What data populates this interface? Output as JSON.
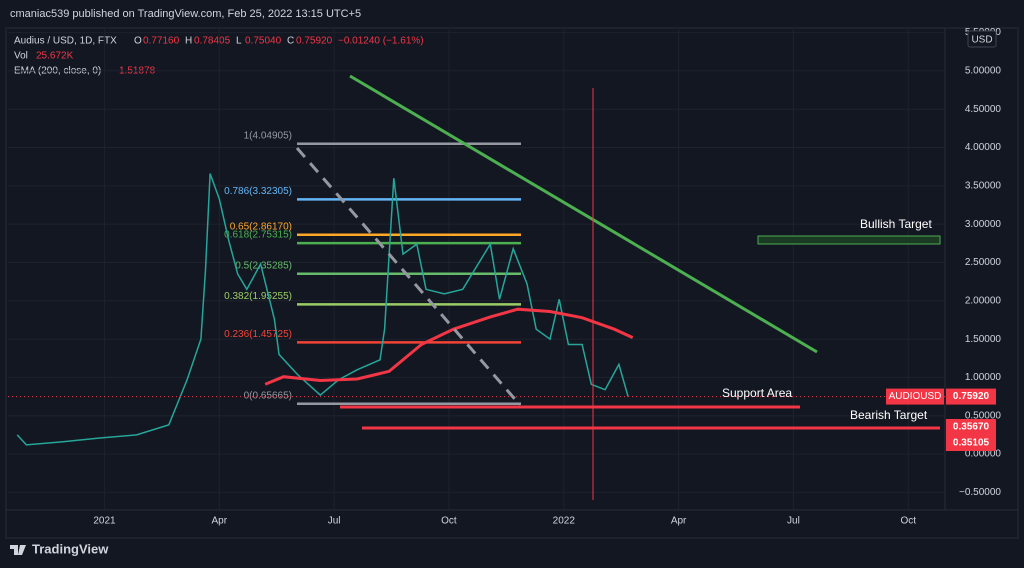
{
  "header": {
    "publisher": "cmaniac539 published on TradingView.com, Feb 25, 2022 13:15 UTC+5"
  },
  "legend": {
    "symbol": "Audius / USD, 1D, FTX",
    "o_key": "O",
    "open": "0.77160",
    "h_key": "H",
    "high": "0.78405",
    "l_key": "L",
    "low": "0.75040",
    "c_key": "C",
    "close": "0.75920",
    "change": "−0.01240 (−1.61%)",
    "vol_key": "Vol",
    "vol": "25.672K",
    "ema_key": "EMA (200, close, 0)",
    "ema": "1.51878"
  },
  "annotations": {
    "bullish": "Bullish Target",
    "support": "Support Area",
    "bearish": "Bearish Target"
  },
  "price_tags": [
    {
      "label": "AUDIOUSD",
      "value": "0.75920"
    },
    {
      "value": "0.35670"
    },
    {
      "value": "0.35105"
    }
  ],
  "currency": "USD",
  "footer": "TradingView",
  "chart_data": {
    "type": "line",
    "xlim": [
      2020.79,
      2022.83
    ],
    "ylim": [
      -0.73,
      5.56
    ],
    "xticks": [
      {
        "value": 2021,
        "label": "2021"
      },
      {
        "value": 2021.25,
        "label": "Apr"
      },
      {
        "value": 2021.5,
        "label": "Jul"
      },
      {
        "value": 2021.75,
        "label": "Oct"
      },
      {
        "value": 2022,
        "label": "2022"
      },
      {
        "value": 2022.25,
        "label": "Apr"
      },
      {
        "value": 2022.5,
        "label": "Jul"
      },
      {
        "value": 2022.75,
        "label": "Oct"
      }
    ],
    "yticks": [
      {
        "value": -0.5,
        "label": "−0.50000"
      },
      {
        "value": 0,
        "label": "0.00000"
      },
      {
        "value": 0.5,
        "label": "0.50000"
      },
      {
        "value": 1,
        "label": "1.00000"
      },
      {
        "value": 1.5,
        "label": "1.50000"
      },
      {
        "value": 2,
        "label": "2.00000"
      },
      {
        "value": 2.5,
        "label": "2.50000"
      },
      {
        "value": 3,
        "label": "3.00000"
      },
      {
        "value": 3.5,
        "label": "3.50000"
      },
      {
        "value": 4,
        "label": "4.00000"
      },
      {
        "value": 4.5,
        "label": "4.50000"
      },
      {
        "value": 5,
        "label": "5.00000"
      },
      {
        "value": 5.5,
        "label": "5.50000"
      }
    ],
    "series": [
      {
        "name": "AUDIOUSD",
        "color": "#26a69a",
        "x": [
          2020.81,
          2020.83,
          2020.91,
          2020.99,
          2021.07,
          2021.14,
          2021.18,
          2021.21,
          2021.22,
          2021.23,
          2021.25,
          2021.27,
          2021.29,
          2021.31,
          2021.34,
          2021.37,
          2021.38,
          2021.42,
          2021.47,
          2021.51,
          2021.55,
          2021.6,
          2021.61,
          2021.63,
          2021.65,
          2021.68,
          2021.7,
          2021.74,
          2021.78,
          2021.84,
          2021.86,
          2021.89,
          2021.92,
          2021.94,
          2021.97,
          2021.99,
          2022.01,
          2022.04,
          2022.06,
          2022.09,
          2022.12,
          2022.14
        ],
        "values": [
          0.25,
          0.12,
          0.16,
          0.21,
          0.25,
          0.38,
          0.97,
          1.5,
          2.4,
          3.66,
          3.33,
          2.8,
          2.35,
          2.15,
          2.48,
          1.76,
          1.3,
          1.04,
          0.77,
          0.97,
          1.1,
          1.23,
          1.63,
          3.6,
          2.61,
          2.74,
          2.15,
          2.09,
          2.15,
          2.74,
          2.02,
          2.68,
          2.22,
          1.63,
          1.5,
          2.02,
          1.43,
          1.43,
          0.91,
          0.84,
          1.17,
          0.75
        ]
      },
      {
        "name": "EMA (200, close, 0)",
        "color": "#f23645",
        "x": [
          2021.35,
          2021.39,
          2021.47,
          2021.55,
          2021.62,
          2021.69,
          2021.76,
          2021.84,
          2021.9,
          2021.97,
          2022.04,
          2022.11,
          2022.15
        ],
        "values": [
          0.91,
          1.01,
          0.96,
          0.98,
          1.08,
          1.43,
          1.63,
          1.79,
          1.89,
          1.86,
          1.78,
          1.63,
          1.52
        ]
      }
    ],
    "fib_levels": [
      {
        "label": "1(4.04905)",
        "value": 4.04905,
        "color": "#9598a1"
      },
      {
        "label": "0.786(3.32305)",
        "value": 3.32305,
        "color": "#64b5f6"
      },
      {
        "label": "0.65(2.86170)",
        "value": 2.8617,
        "color": "#ffa726"
      },
      {
        "label": "0.618(2.75315)",
        "value": 2.75315,
        "color": "#4caf50"
      },
      {
        "label": "0.5(2.35285)",
        "value": 2.35285,
        "color": "#66bb6a"
      },
      {
        "label": "0.382(1.95255)",
        "value": 1.95255,
        "color": "#9ccc65"
      },
      {
        "label": "0.236(1.45725)",
        "value": 1.45725,
        "color": "#f44336"
      },
      {
        "label": "0(0.65665)",
        "value": 0.65665,
        "color": "#9598a1"
      }
    ]
  }
}
